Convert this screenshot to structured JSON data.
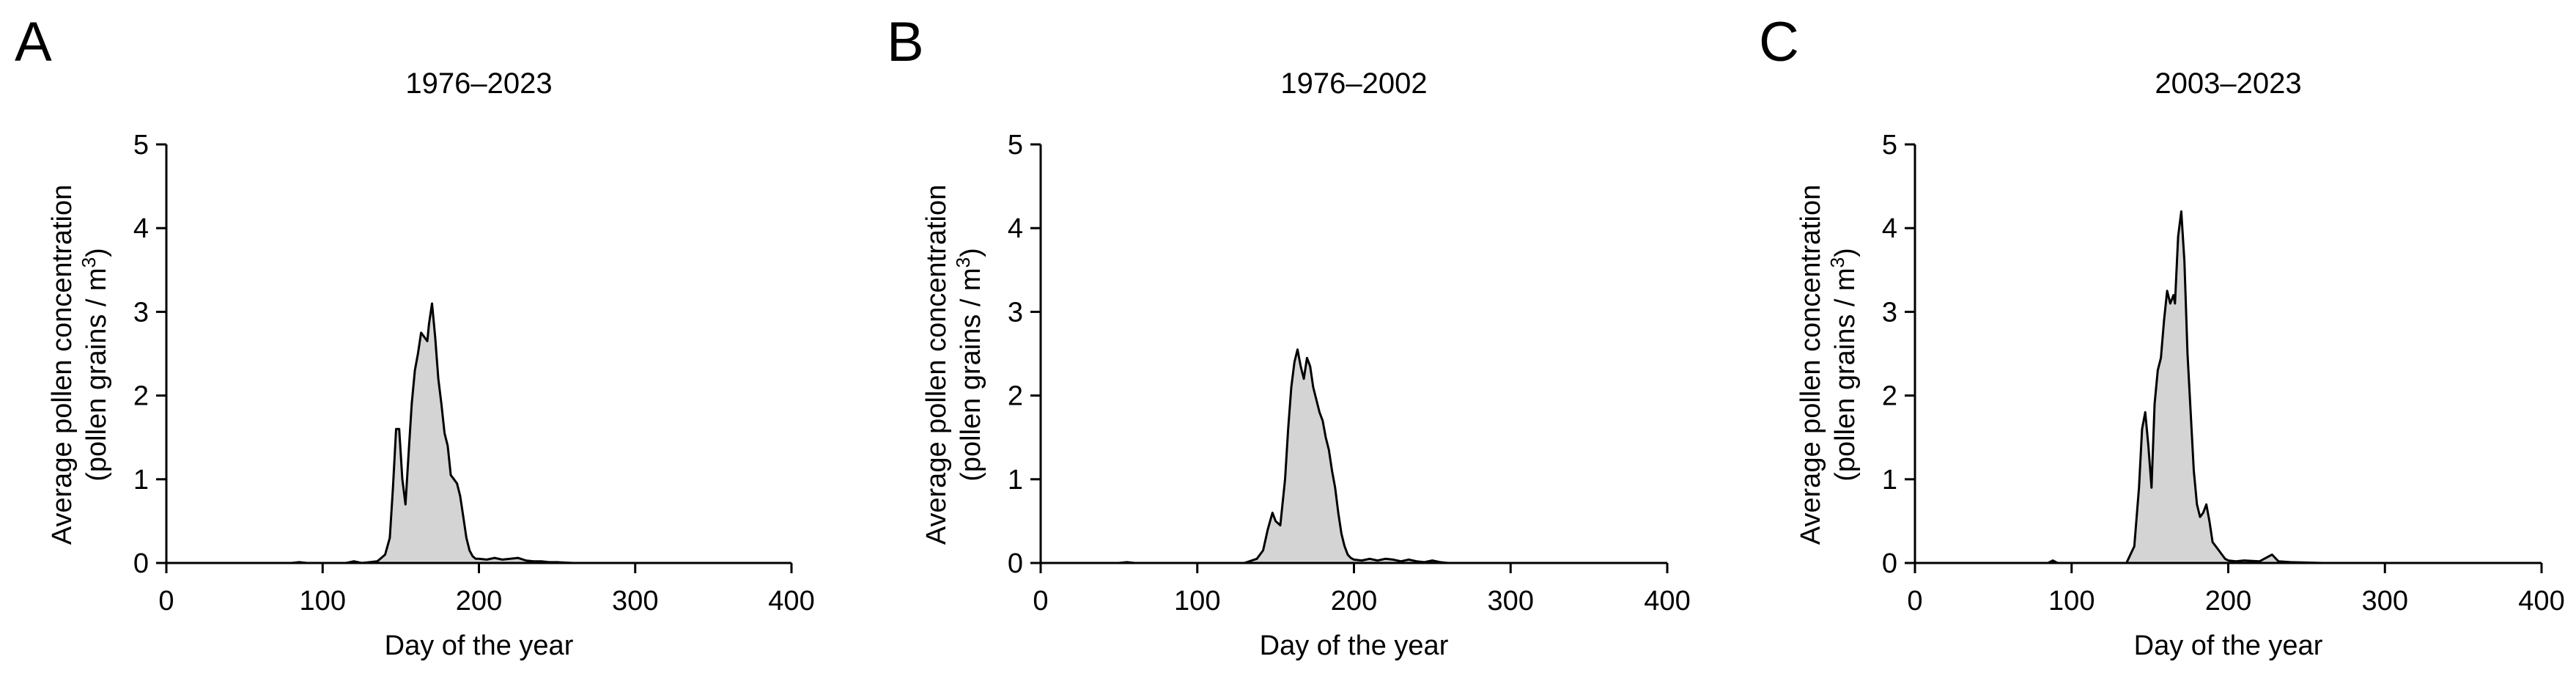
{
  "figure": {
    "background": "#ffffff",
    "fill_color": "#d4d4d4",
    "line_color": "#000000"
  },
  "chart_data": [
    {
      "panel": "A",
      "type": "area",
      "title": "1976–2023",
      "xlabel": "Day of the year",
      "ylabel_line1": "Average pollen concentration",
      "ylabel_line2": "(pollen grains / m",
      "ylabel_sup": "3",
      "ylabel_end": ")",
      "xlim": [
        0,
        400
      ],
      "ylim": [
        0,
        5
      ],
      "xticks": [
        0,
        100,
        200,
        300,
        400
      ],
      "yticks": [
        0,
        1,
        2,
        3,
        4,
        5
      ],
      "grid": false,
      "x": [
        0,
        80,
        85,
        90,
        100,
        115,
        120,
        125,
        135,
        140,
        143,
        145,
        147,
        149,
        151,
        153,
        155,
        157,
        159,
        161,
        163,
        165,
        167,
        168,
        170,
        172,
        174,
        176,
        178,
        180,
        182,
        184,
        186,
        188,
        190,
        192,
        194,
        196,
        198,
        200,
        205,
        210,
        215,
        220,
        225,
        230,
        235,
        240,
        245,
        250,
        260,
        400
      ],
      "values": [
        0,
        0,
        0.01,
        0,
        0,
        0,
        0.02,
        0,
        0.02,
        0.1,
        0.3,
        0.9,
        1.6,
        1.6,
        1.0,
        0.7,
        1.3,
        1.9,
        2.3,
        2.5,
        2.75,
        2.7,
        2.65,
        2.85,
        3.1,
        2.7,
        2.2,
        1.9,
        1.55,
        1.4,
        1.05,
        1.0,
        0.95,
        0.8,
        0.55,
        0.3,
        0.15,
        0.08,
        0.05,
        0.05,
        0.04,
        0.06,
        0.04,
        0.05,
        0.06,
        0.03,
        0.02,
        0.02,
        0.01,
        0.01,
        0,
        0
      ]
    },
    {
      "panel": "B",
      "type": "area",
      "title": "1976–2002",
      "xlabel": "Day of the year",
      "ylabel_line1": "Average pollen concentration",
      "ylabel_line2": "(pollen grains / m",
      "ylabel_sup": "3",
      "ylabel_end": ")",
      "xlim": [
        0,
        400
      ],
      "ylim": [
        0,
        5
      ],
      "xticks": [
        0,
        100,
        200,
        300,
        400
      ],
      "yticks": [
        0,
        1,
        2,
        3,
        4,
        5
      ],
      "grid": false,
      "x": [
        0,
        50,
        55,
        60,
        130,
        138,
        142,
        145,
        148,
        150,
        153,
        156,
        158,
        160,
        162,
        164,
        166,
        168,
        170,
        172,
        174,
        176,
        178,
        180,
        182,
        184,
        186,
        188,
        190,
        192,
        194,
        196,
        198,
        200,
        205,
        210,
        215,
        220,
        225,
        230,
        235,
        240,
        245,
        250,
        255,
        260,
        400
      ],
      "values": [
        0,
        0,
        0.01,
        0,
        0,
        0.05,
        0.15,
        0.4,
        0.6,
        0.5,
        0.45,
        1.0,
        1.6,
        2.1,
        2.4,
        2.55,
        2.35,
        2.2,
        2.45,
        2.35,
        2.1,
        1.95,
        1.8,
        1.7,
        1.5,
        1.35,
        1.1,
        0.9,
        0.6,
        0.35,
        0.2,
        0.1,
        0.06,
        0.04,
        0.03,
        0.05,
        0.03,
        0.05,
        0.04,
        0.02,
        0.04,
        0.02,
        0.01,
        0.03,
        0.01,
        0,
        0
      ]
    },
    {
      "panel": "C",
      "type": "area",
      "title": "2003–2023",
      "xlabel": "Day of the year",
      "ylabel_line1": "Average pollen concentration",
      "ylabel_line2": "(pollen grains / m",
      "ylabel_sup": "3",
      "ylabel_end": ")",
      "xlim": [
        0,
        400
      ],
      "ylim": [
        0,
        5
      ],
      "xticks": [
        0,
        100,
        200,
        300,
        400
      ],
      "yticks": [
        0,
        1,
        2,
        3,
        4,
        5
      ],
      "grid": false,
      "x": [
        0,
        85,
        88,
        91,
        100,
        135,
        140,
        143,
        145,
        147,
        149,
        151,
        153,
        155,
        157,
        159,
        161,
        163,
        165,
        166,
        168,
        170,
        172,
        174,
        176,
        178,
        180,
        182,
        184,
        186,
        188,
        190,
        192,
        194,
        196,
        198,
        200,
        205,
        210,
        220,
        225,
        228,
        232,
        240,
        260,
        400
      ],
      "values": [
        0,
        0,
        0.03,
        0,
        0,
        0,
        0.2,
        0.9,
        1.6,
        1.8,
        1.4,
        0.9,
        1.9,
        2.3,
        2.45,
        2.9,
        3.25,
        3.1,
        3.2,
        3.1,
        3.9,
        4.2,
        3.6,
        2.5,
        1.8,
        1.1,
        0.7,
        0.55,
        0.6,
        0.7,
        0.5,
        0.25,
        0.2,
        0.15,
        0.1,
        0.05,
        0.03,
        0.02,
        0.03,
        0.02,
        0.07,
        0.1,
        0.02,
        0.01,
        0,
        0
      ]
    }
  ]
}
